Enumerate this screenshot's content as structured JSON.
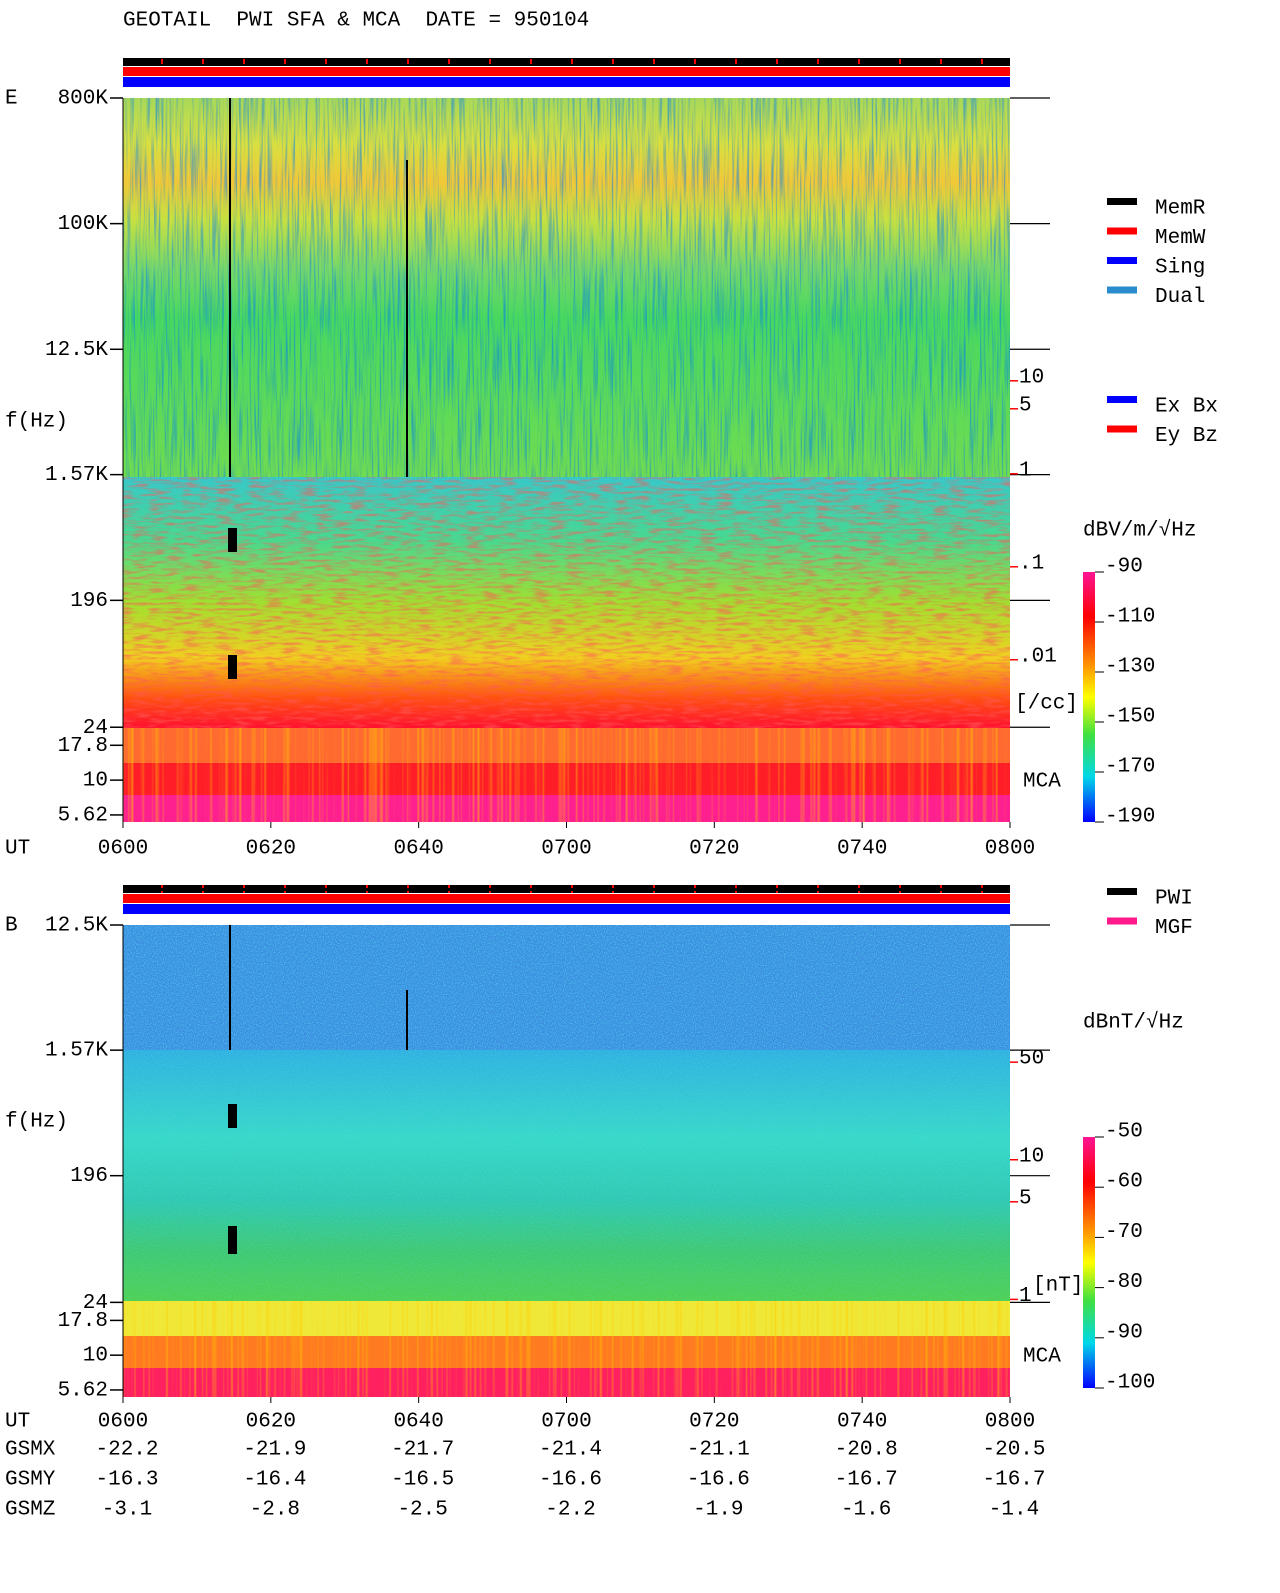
{
  "title": "GEOTAIL  PWI SFA & MCA  DATE = 950104",
  "chart_data": [
    {
      "type": "spectrogram",
      "panel_label": "E",
      "ylabel": "f(Hz)",
      "xlabel": "UT",
      "ylog": true,
      "ylim": [
        5,
        800000
      ],
      "yticks": [
        {
          "value": 800000,
          "label": "800K"
        },
        {
          "value": 100000,
          "label": "100K"
        },
        {
          "value": 12500,
          "label": "12.5K"
        },
        {
          "value": 1570,
          "label": "1.57K"
        },
        196,
        24,
        17.8,
        10,
        5.62
      ],
      "xlim": [
        360,
        480
      ],
      "xticks": [
        {
          "value": 360,
          "label": "0600"
        },
        {
          "value": 380,
          "label": "0620"
        },
        {
          "value": 400,
          "label": "0640"
        },
        {
          "value": 420,
          "label": "0700"
        },
        {
          "value": 440,
          "label": "0720"
        },
        {
          "value": 460,
          "label": "0740"
        },
        {
          "value": 480,
          "label": "0800"
        }
      ],
      "y2label": "[/cc]",
      "y2color": "#ff0000",
      "y2log": true,
      "y2lim": [
        0.00018,
        11000
      ],
      "y2ticks": [
        10,
        5,
        1,
        {
          "value": 0.1,
          "label": ".1"
        },
        {
          "value": 0.01,
          "label": ".01"
        }
      ],
      "mca_label": "MCA",
      "colorbar": {
        "label": "dBV/m/√Hz",
        "lim": [
          -190,
          -90
        ],
        "ticks": [
          -90,
          -110,
          -130,
          -150,
          -170,
          -190
        ]
      },
      "legend": [
        {
          "name": "MemR",
          "color": "#000000"
        },
        {
          "name": "MemW",
          "color": "#ff0000"
        },
        {
          "name": "Sing",
          "color": "#0000ff"
        },
        {
          "name": "Dual",
          "color": "#2a8ccc"
        }
      ],
      "legend2": [
        {
          "name": "Ex Bx",
          "color": "#0000ff"
        },
        {
          "name": "Ey Bz",
          "color": "#ff0000"
        }
      ]
    },
    {
      "type": "spectrogram",
      "panel_label": "B",
      "ylabel": "f(Hz)",
      "xlabel": "UT",
      "ylog": true,
      "ylim": [
        5,
        12500
      ],
      "yticks": [
        {
          "value": 12500,
          "label": "12.5K"
        },
        {
          "value": 1570,
          "label": "1.57K"
        },
        196,
        24,
        17.8,
        10,
        5.62
      ],
      "xlim": [
        360,
        480
      ],
      "xticks": [
        {
          "value": 360,
          "label": "0600"
        },
        {
          "value": 380,
          "label": "0620"
        },
        {
          "value": 400,
          "label": "0640"
        },
        {
          "value": 420,
          "label": "0700"
        },
        {
          "value": 440,
          "label": "0720"
        },
        {
          "value": 460,
          "label": "0740"
        },
        {
          "value": 480,
          "label": "0800"
        }
      ],
      "y2label": "[nT]",
      "y2color": "#ff0000",
      "y2log": true,
      "y2lim": [
        0.2,
        480
      ],
      "y2ticks": [
        50,
        10,
        5,
        1
      ],
      "mca_label": "MCA",
      "colorbar": {
        "label": "dBnT/√Hz",
        "lim": [
          -100,
          -50
        ],
        "ticks": [
          -50,
          -60,
          -70,
          -80,
          -90,
          -100
        ]
      },
      "legend": [
        {
          "name": "PWI",
          "color": "#000000"
        },
        {
          "name": "MGF",
          "color": "#ff1a8c"
        }
      ]
    }
  ],
  "orbit_table": {
    "rows": [
      {
        "label": "GSMX",
        "values": [
          -22.2,
          -21.9,
          -21.7,
          -21.4,
          -21.1,
          -20.8,
          -20.5
        ]
      },
      {
        "label": "GSMY",
        "values": [
          -16.3,
          -16.4,
          -16.5,
          -16.6,
          -16.6,
          -16.7,
          -16.7
        ]
      },
      {
        "label": "GSMZ",
        "values": [
          -3.1,
          -2.8,
          -2.5,
          -2.2,
          -1.9,
          -1.6,
          -1.4
        ]
      }
    ]
  }
}
